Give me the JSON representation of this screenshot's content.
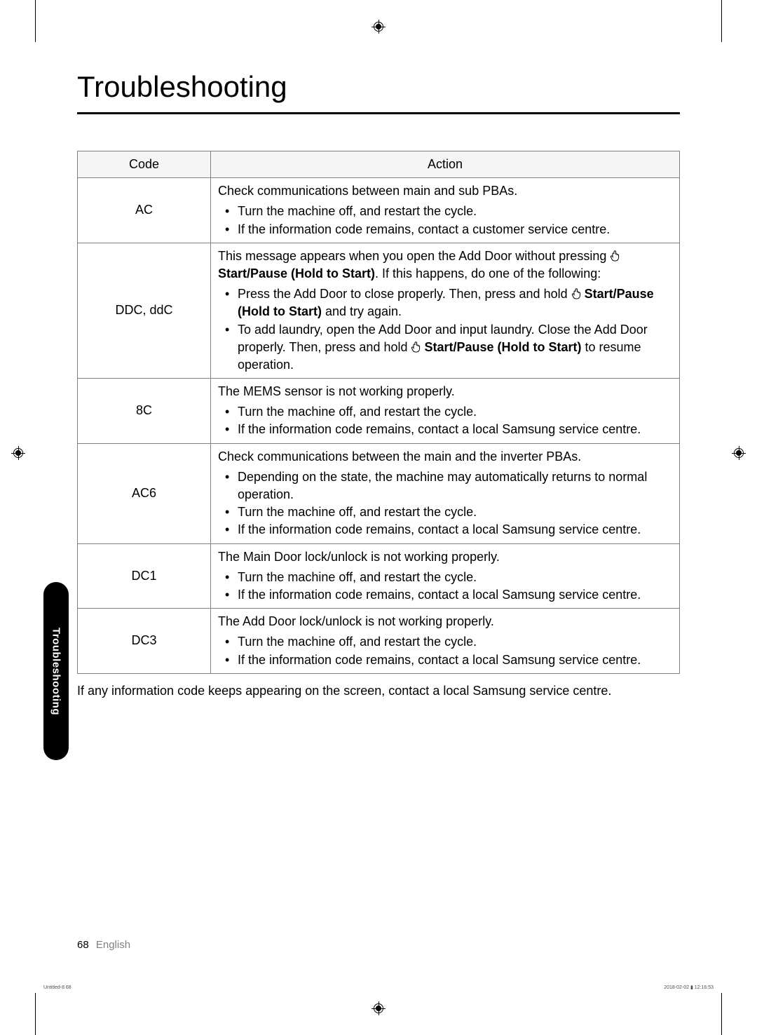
{
  "title": "Troubleshooting",
  "table": {
    "headers": {
      "code": "Code",
      "action": "Action"
    },
    "rows": [
      {
        "code": "AC",
        "intro": "Check communications between main and sub PBAs.",
        "bullets": [
          {
            "text": "Turn the machine off, and restart the cycle."
          },
          {
            "text": "If the information code remains, contact a customer service centre."
          }
        ]
      },
      {
        "code": "DDC, ddC",
        "intro_pre": "This message appears when you open the Add Door without pressing ",
        "intro_bold": "Start/Pause (Hold to Start)",
        "intro_post": ". If this happens, do one of the following:",
        "intro_has_icon": true,
        "bullets": [
          {
            "pre": "Press the Add Door to close properly. Then, press and hold ",
            "bold": "Start/Pause (Hold to Start)",
            "post": " and try again.",
            "has_icon": true
          },
          {
            "pre": "To add laundry, open the Add Door and input laundry. Close the Add Door properly. Then, press and hold ",
            "bold": "Start/Pause (Hold to Start)",
            "post": " to resume operation.",
            "has_icon": true
          }
        ]
      },
      {
        "code": "8C",
        "intro": "The MEMS sensor is not working properly.",
        "bullets": [
          {
            "text": "Turn the machine off, and restart the cycle."
          },
          {
            "text": "If the information code remains, contact a local Samsung service centre."
          }
        ]
      },
      {
        "code": "AC6",
        "intro": "Check communications between the main and the inverter PBAs.",
        "bullets": [
          {
            "text": "Depending on the state, the machine may automatically returns to normal operation."
          },
          {
            "text": "Turn the machine off, and restart the cycle."
          },
          {
            "text": "If the information code remains, contact a local Samsung service centre."
          }
        ]
      },
      {
        "code": "DC1",
        "intro": "The Main Door lock/unlock is not working properly.",
        "bullets": [
          {
            "text": "Turn the machine off, and restart the cycle."
          },
          {
            "text": "If the information code remains, contact a local Samsung service centre."
          }
        ]
      },
      {
        "code": "DC3",
        "intro": "The Add Door lock/unlock is not working properly.",
        "bullets": [
          {
            "text": "Turn the machine off, and restart the cycle."
          },
          {
            "text": "If the information code remains, contact a local Samsung service centre."
          }
        ]
      }
    ]
  },
  "footnote": "If any information code keeps appearing on the screen, contact a local Samsung service centre.",
  "side_tab": "Troubleshooting",
  "footer": {
    "page": "68",
    "lang": "English"
  },
  "print": {
    "left": "Untitled-8   68",
    "right": "2018-02-02   ▮ 12:16:53"
  },
  "colors": {
    "border": "#808080",
    "header_bg": "#f5f5f5",
    "side_tab_bg": "#000000",
    "side_tab_fg": "#ffffff"
  }
}
